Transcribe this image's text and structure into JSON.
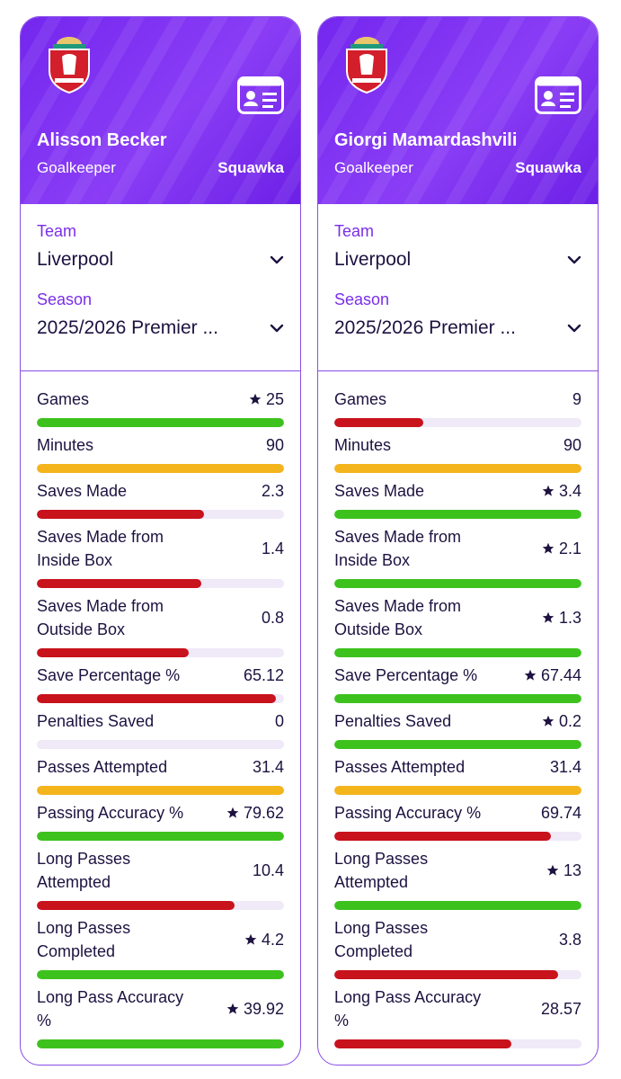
{
  "players": [
    {
      "name": "Alisson Becker",
      "position": "Goalkeeper",
      "source": "Squawka",
      "team_label": "Team",
      "team": "Liverpool",
      "season_label": "Season",
      "season": "2025/2026 Premier ...",
      "stats": [
        {
          "label": "Games",
          "value": 25,
          "star": true,
          "color": "#3dc21d"
        },
        {
          "label": "Minutes",
          "value": 90,
          "star": false,
          "color": "#f4b41c"
        },
        {
          "label": "Saves Made",
          "value": 2.3,
          "star": false,
          "color": "#c8121c"
        },
        {
          "label": "Saves Made from Inside Box",
          "value": 1.4,
          "star": false,
          "color": "#c8121c"
        },
        {
          "label": "Saves Made from Outside Box",
          "value": 0.8,
          "star": false,
          "color": "#c8121c"
        },
        {
          "label": "Save Percentage %",
          "value": 65.12,
          "star": false,
          "color": "#c8121c"
        },
        {
          "label": "Penalties Saved",
          "value": 0,
          "star": false,
          "color": "#c8121c"
        },
        {
          "label": "Passes Attempted",
          "value": 31.4,
          "star": false,
          "color": "#f4b41c"
        },
        {
          "label": "Passing Accuracy %",
          "value": 79.62,
          "star": true,
          "color": "#3dc21d"
        },
        {
          "label": "Long Passes Attempted",
          "value": 10.4,
          "star": false,
          "color": "#c8121c"
        },
        {
          "label": "Long Passes Completed",
          "value": 4.2,
          "star": true,
          "color": "#3dc21d"
        },
        {
          "label": "Long Pass Accuracy %",
          "value": 39.92,
          "star": true,
          "color": "#3dc21d"
        }
      ]
    },
    {
      "name": "Giorgi Mamardashvili",
      "position": "Goalkeeper",
      "source": "Squawka",
      "team_label": "Team",
      "team": "Liverpool",
      "season_label": "Season",
      "season": "2025/2026 Premier ...",
      "stats": [
        {
          "label": "Games",
          "value": 9,
          "star": false,
          "color": "#c8121c"
        },
        {
          "label": "Minutes",
          "value": 90,
          "star": false,
          "color": "#f4b41c"
        },
        {
          "label": "Saves Made",
          "value": 3.4,
          "star": true,
          "color": "#3dc21d"
        },
        {
          "label": "Saves Made from Inside Box",
          "value": 2.1,
          "star": true,
          "color": "#3dc21d"
        },
        {
          "label": "Saves Made from Outside Box",
          "value": 1.3,
          "star": true,
          "color": "#3dc21d"
        },
        {
          "label": "Save Percentage %",
          "value": 67.44,
          "star": true,
          "color": "#3dc21d"
        },
        {
          "label": "Penalties Saved",
          "value": 0.2,
          "star": true,
          "color": "#3dc21d"
        },
        {
          "label": "Passes Attempted",
          "value": 31.4,
          "star": false,
          "color": "#f4b41c"
        },
        {
          "label": "Passing Accuracy %",
          "value": 69.74,
          "star": false,
          "color": "#c8121c"
        },
        {
          "label": "Long Passes Attempted",
          "value": 13,
          "star": true,
          "color": "#3dc21d"
        },
        {
          "label": "Long Passes Completed",
          "value": 3.8,
          "star": false,
          "color": "#c8121c"
        },
        {
          "label": "Long Pass Accuracy %",
          "value": 28.57,
          "star": false,
          "color": "#c8121c"
        }
      ]
    }
  ]
}
